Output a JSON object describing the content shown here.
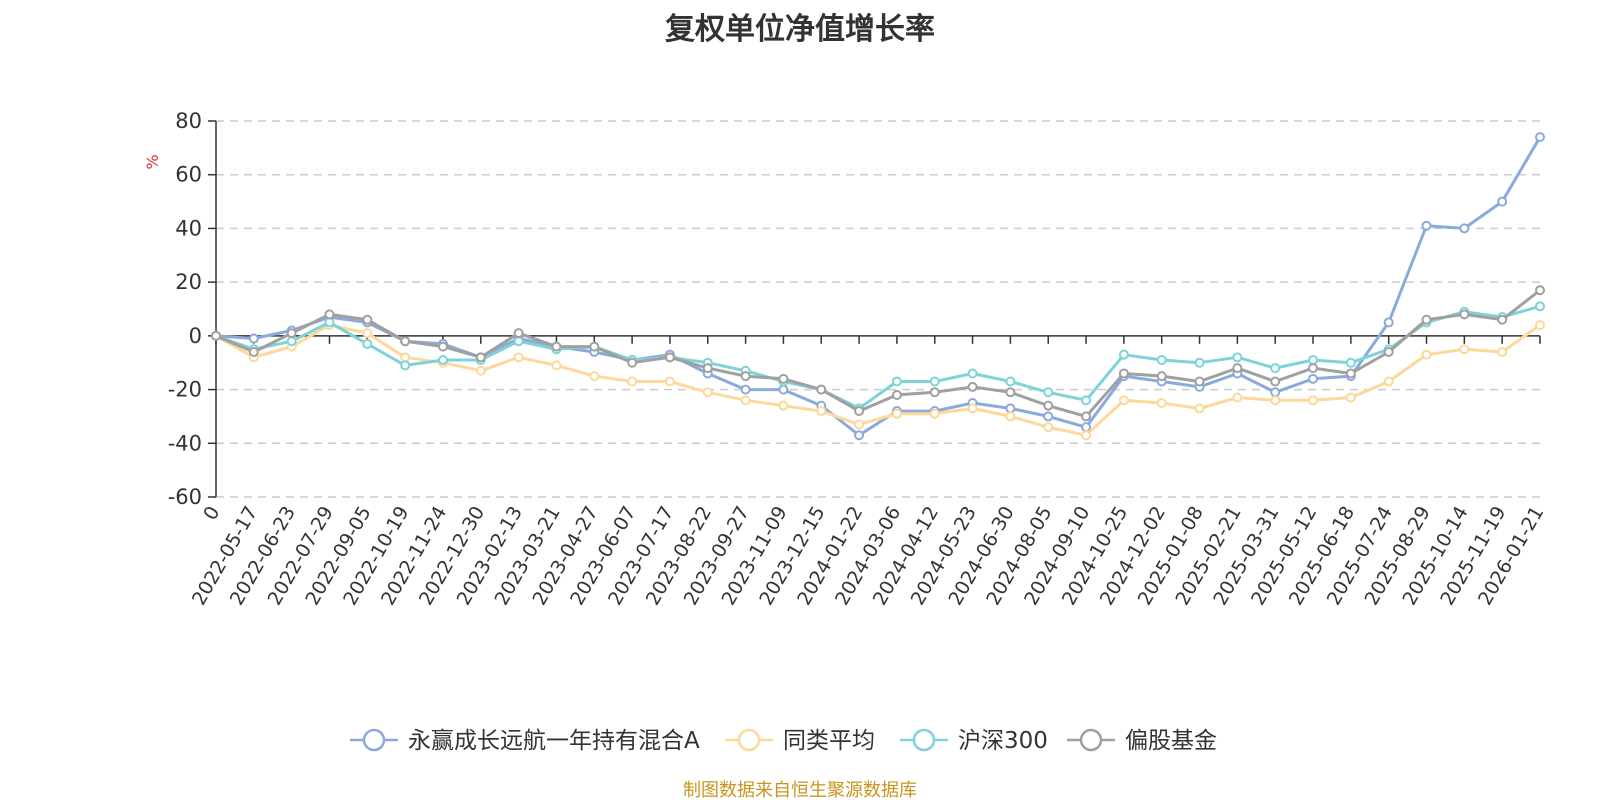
{
  "chart_data": {
    "type": "line",
    "title": "复权单位净值增长率",
    "ylabel": "%",
    "ylim": [
      -60,
      80
    ],
    "yticks": [
      "80",
      "60",
      "40",
      "20",
      "0",
      "-20",
      "-40",
      "-60"
    ],
    "x": [
      "0",
      "2022-05-17",
      "2022-06-23",
      "2022-07-29",
      "2022-09-05",
      "2022-10-19",
      "2022-11-24",
      "2022-12-30",
      "2023-02-13",
      "2023-03-21",
      "2023-04-27",
      "2023-06-07",
      "2023-07-17",
      "2023-08-22",
      "2023-09-27",
      "2023-11-09",
      "2023-12-15",
      "2024-01-22",
      "2024-03-06",
      "2024-04-12",
      "2024-05-23",
      "2024-06-30",
      "2024-08-05",
      "2024-09-10",
      "2024-10-25",
      "2024-12-02",
      "2025-01-08",
      "2025-02-21",
      "2025-03-31",
      "2025-05-12",
      "2025-06-18",
      "2025-07-24",
      "2025-08-29",
      "2025-10-14",
      "2025-11-19",
      "2026-01-21"
    ],
    "series": [
      {
        "name": "永赢成长远航一年持有混合A",
        "color": "#8aaadb",
        "values": [
          0,
          -1,
          2,
          7,
          5,
          -2,
          -3,
          -8,
          -1,
          -4,
          -6,
          -9,
          -7,
          -14,
          -20,
          -20,
          -26,
          -37,
          -28,
          -28,
          -25,
          -27,
          -30,
          -34,
          -15,
          -17,
          -19,
          -14,
          -21,
          -16,
          -15,
          5,
          41,
          40,
          50,
          74
        ]
      },
      {
        "name": "同类平均",
        "color": "#fdd89a",
        "values": [
          0,
          -8,
          -4,
          4,
          1,
          -8,
          -10,
          -13,
          -8,
          -11,
          -15,
          -17,
          -17,
          -21,
          -24,
          -26,
          -28,
          -33,
          -29,
          -29,
          -27,
          -30,
          -34,
          -37,
          -24,
          -25,
          -27,
          -23,
          -24,
          -24,
          -23,
          -17,
          -7,
          -5,
          -6,
          4
        ]
      },
      {
        "name": "沪深300",
        "color": "#7dd3d8",
        "values": [
          0,
          -5,
          -2,
          5,
          -3,
          -11,
          -9,
          -9,
          -2,
          -5,
          -4,
          -9,
          -8,
          -10,
          -13,
          -17,
          -20,
          -27,
          -17,
          -17,
          -14,
          -17,
          -21,
          -24,
          -7,
          -9,
          -10,
          -8,
          -12,
          -9,
          -10,
          -5,
          5,
          9,
          7,
          11
        ]
      },
      {
        "name": "偏股基金",
        "color": "#a0a0a0",
        "values": [
          0,
          -6,
          1,
          8,
          6,
          -2,
          -4,
          -8,
          1,
          -4,
          -4,
          -10,
          -8,
          -12,
          -15,
          -16,
          -20,
          -28,
          -22,
          -21,
          -19,
          -21,
          -26,
          -30,
          -14,
          -15,
          -17,
          -12,
          -17,
          -12,
          -14,
          -6,
          6,
          8,
          6,
          17
        ]
      }
    ],
    "legend": [
      "永赢成长远航一年持有混合A",
      "同类平均",
      "沪深300",
      "偏股基金"
    ],
    "legend_position": "bottom",
    "grid": "horizontal dashed"
  },
  "source_text": "制图数据来自恒生聚源数据库"
}
